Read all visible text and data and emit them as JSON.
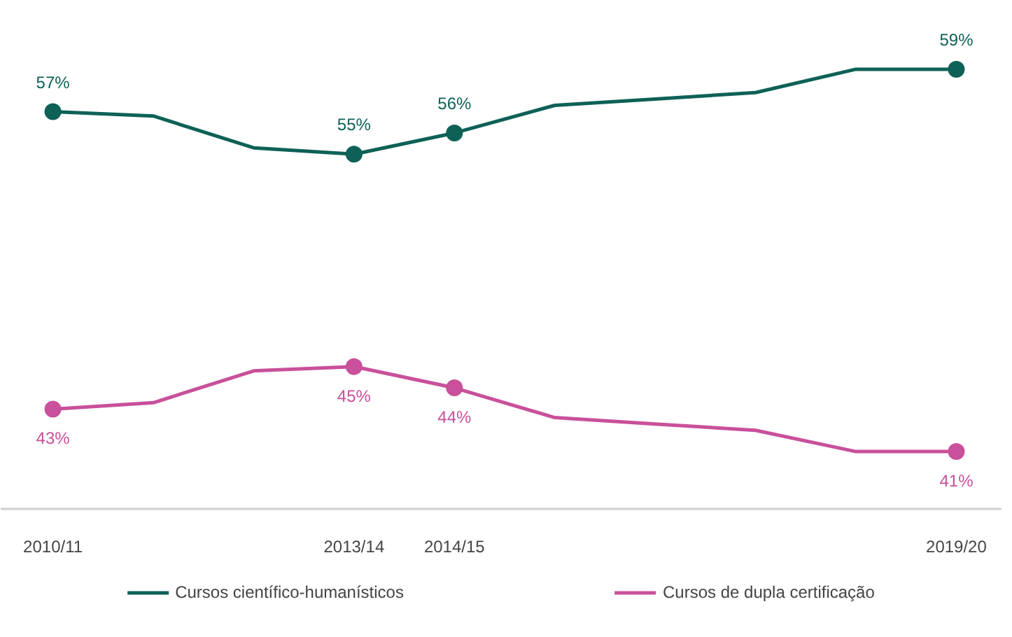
{
  "chart_data": {
    "type": "line",
    "categories": [
      "2010/11",
      null,
      null,
      "2013/14",
      "2014/15",
      null,
      null,
      null,
      null,
      "2019/20"
    ],
    "series": [
      {
        "name": "Cursos científico-humanísticos",
        "color": "#0e6157",
        "values": [
          57,
          56.8,
          55.3,
          55,
          56,
          57.3,
          57.6,
          57.9,
          59,
          59
        ],
        "value_labels": [
          "57%",
          null,
          null,
          "55%",
          "56%",
          null,
          null,
          null,
          null,
          "59%"
        ]
      },
      {
        "name": "Cursos de dupla certificação",
        "color": "#c9509a",
        "values": [
          43,
          43.3,
          44.8,
          45,
          44,
          42.6,
          42.3,
          42,
          41,
          41
        ],
        "value_labels": [
          "43%",
          null,
          null,
          "45%",
          "44%",
          null,
          null,
          null,
          null,
          "41%"
        ]
      }
    ],
    "tick_labels": "x",
    "grid": false,
    "legend": "bottom",
    "line_style": "solid"
  }
}
